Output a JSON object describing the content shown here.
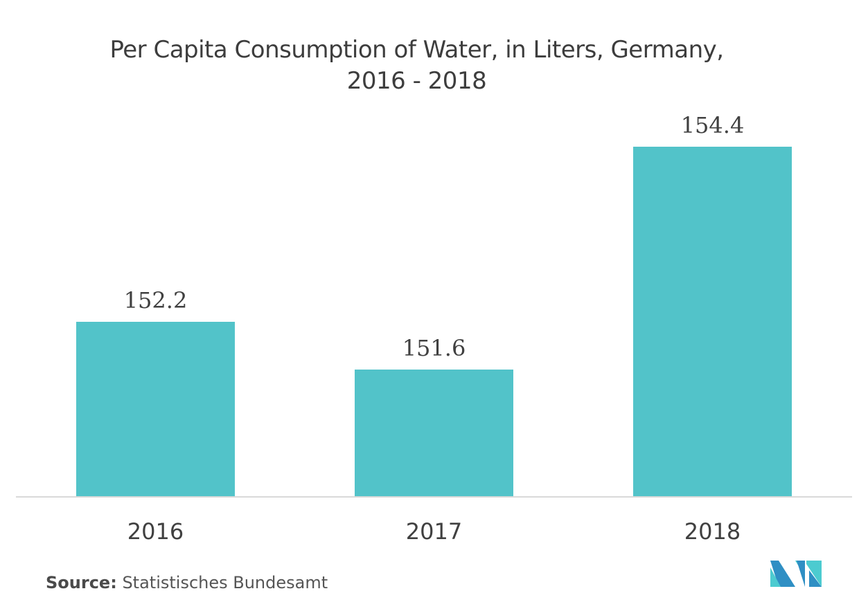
{
  "chart_data": {
    "type": "bar",
    "title": "Per Capita Consumption of Water, in Liters, Germany, 2016 - 2018",
    "title_lines": [
      "Per Capita Consumption of Water, in Liters, Germany,",
      "2016 - 2018"
    ],
    "categories": [
      "2016",
      "2017",
      "2018"
    ],
    "values": [
      152.2,
      151.6,
      154.4
    ],
    "value_labels": [
      "152.2",
      "151.6",
      "154.4"
    ],
    "xlabel": "",
    "ylabel": "",
    "ylim": [
      150,
      155
    ],
    "grid": false,
    "legend": "none",
    "bar_color": "#52c3c9",
    "axis_color": "#d9d9d9"
  },
  "source": {
    "label": "Source:",
    "text": "Statistisches Bundesamt"
  },
  "logo": {
    "icon": "mordor-intelligence-logo-icon",
    "colors": [
      "#2f8fc4",
      "#4ccbd0"
    ]
  }
}
